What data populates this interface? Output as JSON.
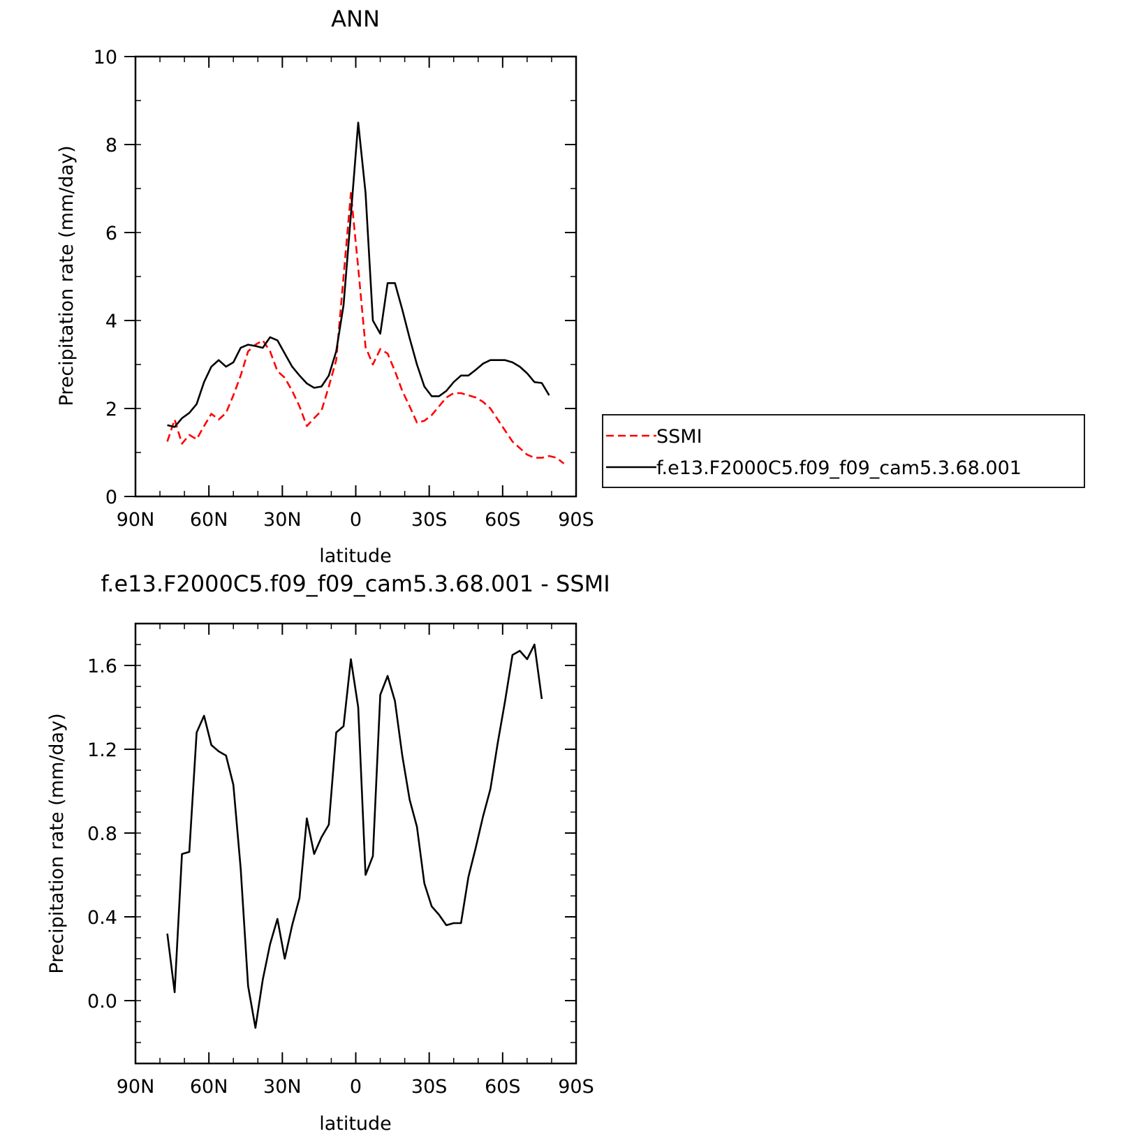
{
  "chart_data": [
    {
      "type": "line",
      "title": "ANN",
      "xlabel": "latitude",
      "ylabel": "Precipitation rate (mm/day)",
      "xlim": [
        90,
        -90
      ],
      "ylim": [
        0,
        10
      ],
      "xticks": [
        90,
        60,
        30,
        0,
        -30,
        -60,
        -90
      ],
      "xtick_labels": [
        "90N",
        "60N",
        "30N",
        "0",
        "30S",
        "60S",
        "90S"
      ],
      "yticks": [
        0,
        2,
        4,
        6,
        8,
        10
      ],
      "ytick_labels": [
        "0",
        "2",
        "4",
        "6",
        "8",
        "10"
      ],
      "legend_position": "right",
      "series": [
        {
          "name": "SSMI",
          "color": "#ff0000",
          "dash": "dashed",
          "points": [
            [
              77,
              1.25
            ],
            [
              74,
              1.75
            ],
            [
              71,
              1.2
            ],
            [
              68,
              1.4
            ],
            [
              65,
              1.3
            ],
            [
              62,
              1.6
            ],
            [
              59,
              1.88
            ],
            [
              56,
              1.75
            ],
            [
              53,
              1.9
            ],
            [
              50,
              2.3
            ],
            [
              47,
              2.75
            ],
            [
              44,
              3.3
            ],
            [
              41,
              3.45
            ],
            [
              38,
              3.55
            ],
            [
              35,
              3.3
            ],
            [
              32,
              2.85
            ],
            [
              29,
              2.7
            ],
            [
              26,
              2.4
            ],
            [
              23,
              2.05
            ],
            [
              20,
              1.6
            ],
            [
              17,
              1.78
            ],
            [
              14,
              1.95
            ],
            [
              11,
              2.5
            ],
            [
              8,
              3.1
            ],
            [
              5,
              5.0
            ],
            [
              2,
              6.9
            ],
            [
              -1,
              5.2
            ],
            [
              -4,
              3.4
            ],
            [
              -7,
              3.0
            ],
            [
              -10,
              3.35
            ],
            [
              -13,
              3.25
            ],
            [
              -16,
              2.85
            ],
            [
              -19,
              2.4
            ],
            [
              -22,
              2.05
            ],
            [
              -25,
              1.68
            ],
            [
              -28,
              1.72
            ],
            [
              -31,
              1.85
            ],
            [
              -34,
              2.05
            ],
            [
              -37,
              2.25
            ],
            [
              -40,
              2.35
            ],
            [
              -43,
              2.35
            ],
            [
              -46,
              2.3
            ],
            [
              -49,
              2.25
            ],
            [
              -52,
              2.15
            ],
            [
              -55,
              2.0
            ],
            [
              -58,
              1.75
            ],
            [
              -61,
              1.5
            ],
            [
              -64,
              1.25
            ],
            [
              -67,
              1.1
            ],
            [
              -70,
              0.95
            ],
            [
              -73,
              0.88
            ],
            [
              -76,
              0.88
            ],
            [
              -79,
              0.92
            ],
            [
              -82,
              0.88
            ],
            [
              -85,
              0.75
            ]
          ]
        },
        {
          "name": "f.e13.F2000C5.f09_f09_cam5.3.68.001",
          "color": "#000000",
          "dash": "solid",
          "points": [
            [
              77,
              1.62
            ],
            [
              74,
              1.58
            ],
            [
              71,
              1.78
            ],
            [
              68,
              1.9
            ],
            [
              65,
              2.1
            ],
            [
              62,
              2.6
            ],
            [
              59,
              2.95
            ],
            [
              56,
              3.1
            ],
            [
              53,
              2.95
            ],
            [
              50,
              3.05
            ],
            [
              47,
              3.38
            ],
            [
              44,
              3.45
            ],
            [
              41,
              3.42
            ],
            [
              38,
              3.38
            ],
            [
              35,
              3.62
            ],
            [
              32,
              3.55
            ],
            [
              29,
              3.25
            ],
            [
              26,
              2.95
            ],
            [
              23,
              2.75
            ],
            [
              20,
              2.57
            ],
            [
              17,
              2.47
            ],
            [
              14,
              2.5
            ],
            [
              11,
              2.75
            ],
            [
              8,
              3.3
            ],
            [
              5,
              4.35
            ],
            [
              2,
              6.4
            ],
            [
              -1,
              8.5
            ],
            [
              -4,
              6.9
            ],
            [
              -7,
              4.0
            ],
            [
              -10,
              3.7
            ],
            [
              -13,
              4.85
            ],
            [
              -16,
              4.85
            ],
            [
              -19,
              4.25
            ],
            [
              -22,
              3.6
            ],
            [
              -25,
              3.0
            ],
            [
              -28,
              2.5
            ],
            [
              -31,
              2.28
            ],
            [
              -34,
              2.28
            ],
            [
              -37,
              2.4
            ],
            [
              -40,
              2.6
            ],
            [
              -43,
              2.75
            ],
            [
              -46,
              2.75
            ],
            [
              -49,
              2.88
            ],
            [
              -52,
              3.02
            ],
            [
              -55,
              3.1
            ],
            [
              -58,
              3.1
            ],
            [
              -61,
              3.1
            ],
            [
              -64,
              3.05
            ],
            [
              -67,
              2.95
            ],
            [
              -70,
              2.8
            ],
            [
              -73,
              2.6
            ],
            [
              -76,
              2.58
            ],
            [
              -79,
              2.3
            ]
          ]
        }
      ]
    },
    {
      "type": "line",
      "title": "f.e13.F2000C5.f09_f09_cam5.3.68.001 - SSMI",
      "xlabel": "latitude",
      "ylabel": "Precipitation rate (mm/day)",
      "xlim": [
        90,
        -90
      ],
      "ylim": [
        -0.3,
        1.8
      ],
      "xticks": [
        90,
        60,
        30,
        0,
        -30,
        -60,
        -90
      ],
      "xtick_labels": [
        "90N",
        "60N",
        "30N",
        "0",
        "30S",
        "60S",
        "90S"
      ],
      "yticks": [
        0.0,
        0.4,
        0.8,
        1.2,
        1.6
      ],
      "ytick_labels": [
        "0.0",
        "0.4",
        "0.8",
        "1.2",
        "1.6"
      ],
      "series": [
        {
          "color": "#000000",
          "dash": "solid",
          "points": [
            [
              77,
              0.32
            ],
            [
              74,
              0.04
            ],
            [
              71,
              0.7
            ],
            [
              68,
              0.71
            ],
            [
              65,
              1.28
            ],
            [
              62,
              1.36
            ],
            [
              59,
              1.22
            ],
            [
              56,
              1.19
            ],
            [
              53,
              1.17
            ],
            [
              50,
              1.03
            ],
            [
              47,
              0.63
            ],
            [
              44,
              0.07
            ],
            [
              41,
              -0.13
            ],
            [
              38,
              0.1
            ],
            [
              35,
              0.27
            ],
            [
              32,
              0.39
            ],
            [
              29,
              0.2
            ],
            [
              26,
              0.36
            ],
            [
              23,
              0.49
            ],
            [
              20,
              0.87
            ],
            [
              17,
              0.7
            ],
            [
              14,
              0.78
            ],
            [
              11,
              0.84
            ],
            [
              8,
              1.28
            ],
            [
              5,
              1.31
            ],
            [
              2,
              1.63
            ],
            [
              -1,
              1.4
            ],
            [
              -4,
              0.6
            ],
            [
              -7,
              0.69
            ],
            [
              -10,
              1.46
            ],
            [
              -13,
              1.55
            ],
            [
              -16,
              1.43
            ],
            [
              -19,
              1.17
            ],
            [
              -22,
              0.96
            ],
            [
              -25,
              0.83
            ],
            [
              -28,
              0.56
            ],
            [
              -31,
              0.45
            ],
            [
              -34,
              0.41
            ],
            [
              -37,
              0.36
            ],
            [
              -40,
              0.37
            ],
            [
              -43,
              0.37
            ],
            [
              -46,
              0.59
            ],
            [
              -49,
              0.73
            ],
            [
              -52,
              0.88
            ],
            [
              -55,
              1.01
            ],
            [
              -58,
              1.23
            ],
            [
              -61,
              1.43
            ],
            [
              -64,
              1.65
            ],
            [
              -67,
              1.67
            ],
            [
              -70,
              1.63
            ],
            [
              -73,
              1.7
            ],
            [
              -76,
              1.44
            ]
          ]
        }
      ]
    }
  ]
}
